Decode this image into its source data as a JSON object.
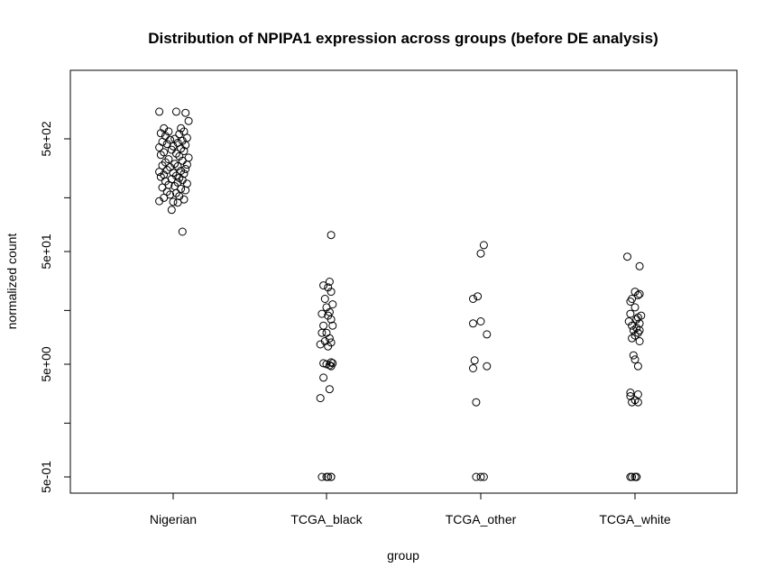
{
  "chart_data": {
    "type": "scatter",
    "title": "Distribution of NPIPA1 expression across groups (before DE analysis)",
    "xlabel": "group",
    "ylabel": "normalized count",
    "y_scale": "log",
    "ylim": [
      0.5,
      900
    ],
    "grid": false,
    "legend": "none",
    "categories": [
      "Nigerian",
      "TCGA_black",
      "TCGA_other",
      "TCGA_white"
    ],
    "y_ticks": [
      0.5,
      5,
      50,
      500
    ],
    "y_tick_labels": [
      "5e-01",
      "5e+00",
      "5e+01",
      "5e+02"
    ],
    "y_minor_ticks": [
      1.5,
      15,
      150
    ],
    "point_color": "#000000",
    "series": [
      {
        "category": "Nigerian",
        "jitter": [
          -0.09,
          0.08,
          0.02,
          0.1,
          -0.06,
          0.05,
          -0.03,
          0.07,
          -0.08,
          0.04,
          -0.05,
          0.09,
          0.01,
          -0.02,
          0.06,
          -0.07,
          0.03,
          -0.04,
          0.08,
          0.0,
          -0.09,
          0.05,
          -0.01,
          0.07,
          -0.06,
          0.02,
          -0.08,
          0.04,
          0.1,
          -0.03,
          0.06,
          -0.05,
          0.01,
          0.09,
          -0.07,
          0.03,
          -0.02,
          0.08,
          -0.04,
          0.05,
          -0.09,
          0.0,
          0.07,
          -0.06,
          0.02,
          -0.08,
          0.04,
          -0.01,
          0.06,
          -0.05,
          0.03,
          0.09,
          -0.03,
          0.01,
          -0.07,
          0.05,
          0.08,
          -0.04,
          0.02,
          -0.02,
          0.04,
          -0.06,
          0.07,
          -0.09,
          0.0,
          0.03,
          -0.01,
          0.06
        ],
        "values": [
          870,
          850,
          870,
          720,
          620,
          620,
          580,
          580,
          560,
          550,
          530,
          510,
          500,
          490,
          480,
          470,
          460,
          450,
          440,
          430,
          420,
          410,
          400,
          390,
          380,
          370,
          360,
          350,
          340,
          330,
          320,
          310,
          300,
          295,
          290,
          285,
          280,
          270,
          265,
          260,
          255,
          250,
          245,
          240,
          235,
          230,
          225,
          220,
          215,
          210,
          205,
          200,
          195,
          190,
          185,
          180,
          175,
          170,
          165,
          160,
          155,
          150,
          145,
          140,
          138,
          136,
          117,
          75
        ]
      },
      {
        "category": "TCGA_black",
        "jitter": [
          0.03,
          0.02,
          -0.02,
          0.01,
          0.03,
          -0.01,
          0.04,
          0.0,
          0.02,
          -0.03,
          0.01,
          0.03,
          -0.02,
          0.04,
          0.0,
          -0.03,
          0.02,
          -0.01,
          0.03,
          -0.04,
          0.01,
          0.03,
          -0.02,
          0.04,
          0.0,
          0.02,
          0.03,
          -0.02,
          0.02,
          -0.04,
          0.01,
          0.03,
          -0.03,
          0.0,
          0.03
        ],
        "values": [
          70,
          27,
          25,
          24,
          22,
          19,
          17,
          16,
          14.5,
          14,
          13.5,
          12.5,
          11,
          11,
          9.5,
          9.5,
          8.5,
          8,
          7.8,
          7.5,
          7.2,
          5.2,
          5.1,
          5.1,
          5.0,
          4.9,
          4.8,
          3.8,
          3,
          2.5,
          0.5,
          0.5,
          0.5,
          0.5,
          0.5
        ]
      },
      {
        "category": "TCGA_other",
        "jitter": [
          0.02,
          0.0,
          -0.02,
          -0.05,
          0.0,
          -0.05,
          0.04,
          -0.04,
          0.04,
          -0.05,
          -0.03,
          0.0,
          0.02,
          -0.03
        ],
        "values": [
          57,
          48,
          20,
          19,
          12,
          11.5,
          9.2,
          5.4,
          4.8,
          4.6,
          2.3,
          0.5,
          0.5,
          0.5
        ],
        "note_unused": ""
      },
      {
        "category": "TCGA_white",
        "jitter": [
          -0.05,
          0.03,
          0.0,
          0.03,
          0.02,
          -0.02,
          -0.03,
          0.0,
          -0.03,
          0.02,
          0.04,
          0.01,
          -0.04,
          0.03,
          -0.02,
          0.01,
          0.03,
          -0.01,
          0.02,
          0.0,
          -0.02,
          0.03,
          -0.01,
          0.0,
          0.02,
          -0.03,
          0.02,
          -0.03,
          0.0,
          0.02,
          -0.02,
          -0.03,
          0.01,
          -0.02,
          0.0,
          0.01
        ],
        "values": [
          45,
          37,
          22,
          21,
          20.5,
          19,
          18,
          16,
          14,
          13,
          13.5,
          12.5,
          12,
          11.5,
          11,
          10.5,
          10,
          10,
          9.5,
          9,
          8.5,
          8,
          6,
          5.5,
          4.8,
          2.8,
          2.7,
          2.6,
          2.4,
          2.3,
          2.3,
          0.5,
          0.5,
          0.5,
          0.5,
          0.5
        ]
      }
    ]
  }
}
